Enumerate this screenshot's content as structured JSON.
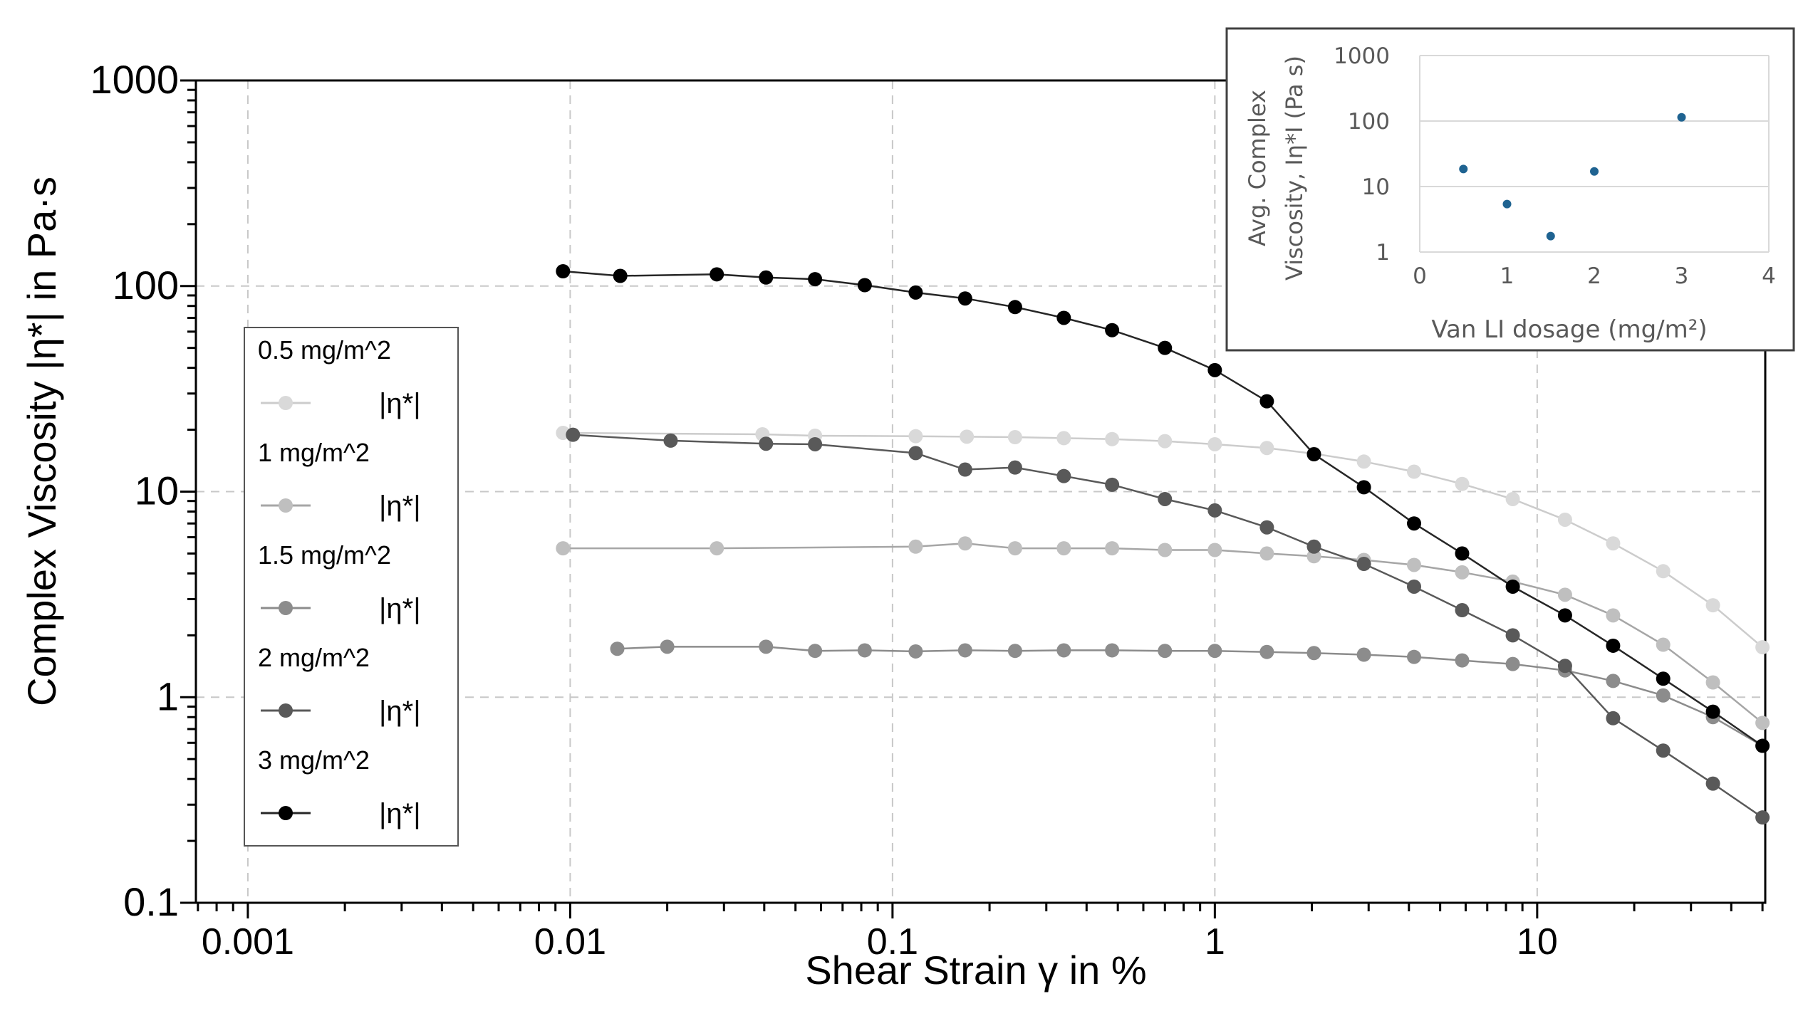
{
  "chart_data": [
    {
      "type": "line",
      "title": "",
      "xlabel": "Shear Strain γ in %",
      "ylabel": "Complex Viscosity |η*| in Pa·s",
      "xscale": "log",
      "yscale": "log",
      "xlim": [
        0.00069,
        51
      ],
      "ylim": [
        0.1,
        1000
      ],
      "grid": true,
      "x_ticks": [
        0.001,
        0.01,
        0.1,
        1,
        10
      ],
      "x_tick_labels": [
        "0.001",
        "0.01",
        "0.1",
        "1",
        "10"
      ],
      "y_ticks": [
        0.1,
        1,
        10,
        100,
        1000
      ],
      "y_tick_labels": [
        "0.1",
        "1",
        "10",
        "100",
        "1000"
      ],
      "legend_position": "left",
      "series": [
        {
          "name": "0.5 mg/m^2",
          "label": "|η*|",
          "color": "#d9d9d9",
          "line_color": "#cccccc",
          "x": [
            0.0095,
            0.0395,
            0.0575,
            0.118,
            0.17,
            0.24,
            0.34,
            0.48,
            0.7,
            1.0,
            1.45,
            2.03,
            2.9,
            4.15,
            5.85,
            8.4,
            12.2,
            17.2,
            24.6,
            35.1,
            50
          ],
          "y": [
            19.3,
            19.0,
            18.7,
            18.6,
            18.5,
            18.4,
            18.2,
            18.0,
            17.6,
            17.0,
            16.3,
            15.3,
            14.0,
            12.5,
            10.9,
            9.2,
            7.3,
            5.6,
            4.1,
            2.8,
            1.75
          ]
        },
        {
          "name": "1 mg/m^2",
          "label": "|η*|",
          "color": "#bfbfbf",
          "line_color": "#a6a6a6",
          "x": [
            0.0095,
            0.0285,
            0.118,
            0.168,
            0.24,
            0.34,
            0.48,
            0.7,
            1.0,
            1.45,
            2.03,
            2.9,
            4.15,
            5.85,
            8.4,
            12.2,
            17.2,
            24.6,
            35.1,
            50
          ],
          "y": [
            5.3,
            5.3,
            5.4,
            5.6,
            5.3,
            5.3,
            5.3,
            5.2,
            5.2,
            5.0,
            4.85,
            4.65,
            4.4,
            4.05,
            3.65,
            3.15,
            2.5,
            1.8,
            1.18,
            0.75
          ]
        },
        {
          "name": "1.5 mg/m^2",
          "label": "|η*|",
          "color": "#8c8c8c",
          "line_color": "#8c8c8c",
          "x": [
            0.014,
            0.02,
            0.0405,
            0.0575,
            0.082,
            0.118,
            0.168,
            0.24,
            0.34,
            0.48,
            0.7,
            1.0,
            1.45,
            2.03,
            2.9,
            4.15,
            5.85,
            8.4,
            12.2,
            17.2,
            24.6,
            35.1,
            50
          ],
          "y": [
            1.72,
            1.76,
            1.76,
            1.68,
            1.69,
            1.67,
            1.69,
            1.68,
            1.69,
            1.69,
            1.68,
            1.68,
            1.66,
            1.64,
            1.61,
            1.57,
            1.51,
            1.45,
            1.35,
            1.2,
            1.02,
            0.8,
            0.58
          ]
        },
        {
          "name": "2 mg/m^2",
          "label": "|η*|",
          "color": "#595959",
          "line_color": "#595959",
          "x": [
            0.0102,
            0.0205,
            0.0405,
            0.0575,
            0.118,
            0.168,
            0.24,
            0.34,
            0.48,
            0.7,
            1.0,
            1.45,
            2.03,
            2.9,
            4.15,
            5.85,
            8.4,
            12.2,
            17.2,
            24.6,
            35.1,
            50
          ],
          "y": [
            18.9,
            17.7,
            17.1,
            17.0,
            15.4,
            12.8,
            13.1,
            11.9,
            10.8,
            9.2,
            8.1,
            6.7,
            5.4,
            4.45,
            3.45,
            2.65,
            2.0,
            1.42,
            0.79,
            0.55,
            0.38,
            0.26
          ]
        },
        {
          "name": "3 mg/m^2",
          "label": "|η*|",
          "color": "#000000",
          "line_color": "#262626",
          "x": [
            0.0095,
            0.0143,
            0.0285,
            0.0405,
            0.0575,
            0.082,
            0.118,
            0.168,
            0.24,
            0.34,
            0.48,
            0.7,
            1.0,
            1.45,
            2.03,
            2.9,
            4.15,
            5.85,
            8.4,
            12.2,
            17.2,
            24.6,
            35.1,
            50
          ],
          "y": [
            118,
            112,
            114,
            110,
            108,
            101,
            93,
            87,
            79,
            70,
            61,
            50,
            39,
            27.5,
            15.2,
            10.5,
            7.0,
            5.0,
            3.45,
            2.5,
            1.78,
            1.23,
            0.85,
            0.58
          ]
        }
      ]
    },
    {
      "type": "scatter",
      "title": "",
      "xlabel": "Van LI dosage (mg/m²)",
      "ylabel": "Avg. Complex Viscosity, Iη*I (Pa s)",
      "ylabel_lines": [
        "Avg. Complex",
        "Viscosity, Iη*I (Pa s)"
      ],
      "xscale": "linear",
      "yscale": "log",
      "xlim": [
        0,
        4
      ],
      "ylim": [
        1,
        1000
      ],
      "grid": true,
      "x_tick_labels": [
        "0",
        "1",
        "2",
        "3",
        "4"
      ],
      "y_tick_labels": [
        "1",
        "10",
        "100",
        "1000"
      ],
      "color": "#1f6391",
      "x": [
        0.5,
        1,
        1.5,
        2,
        3
      ],
      "y": [
        18.5,
        5.4,
        1.75,
        17.0,
        114
      ]
    }
  ]
}
